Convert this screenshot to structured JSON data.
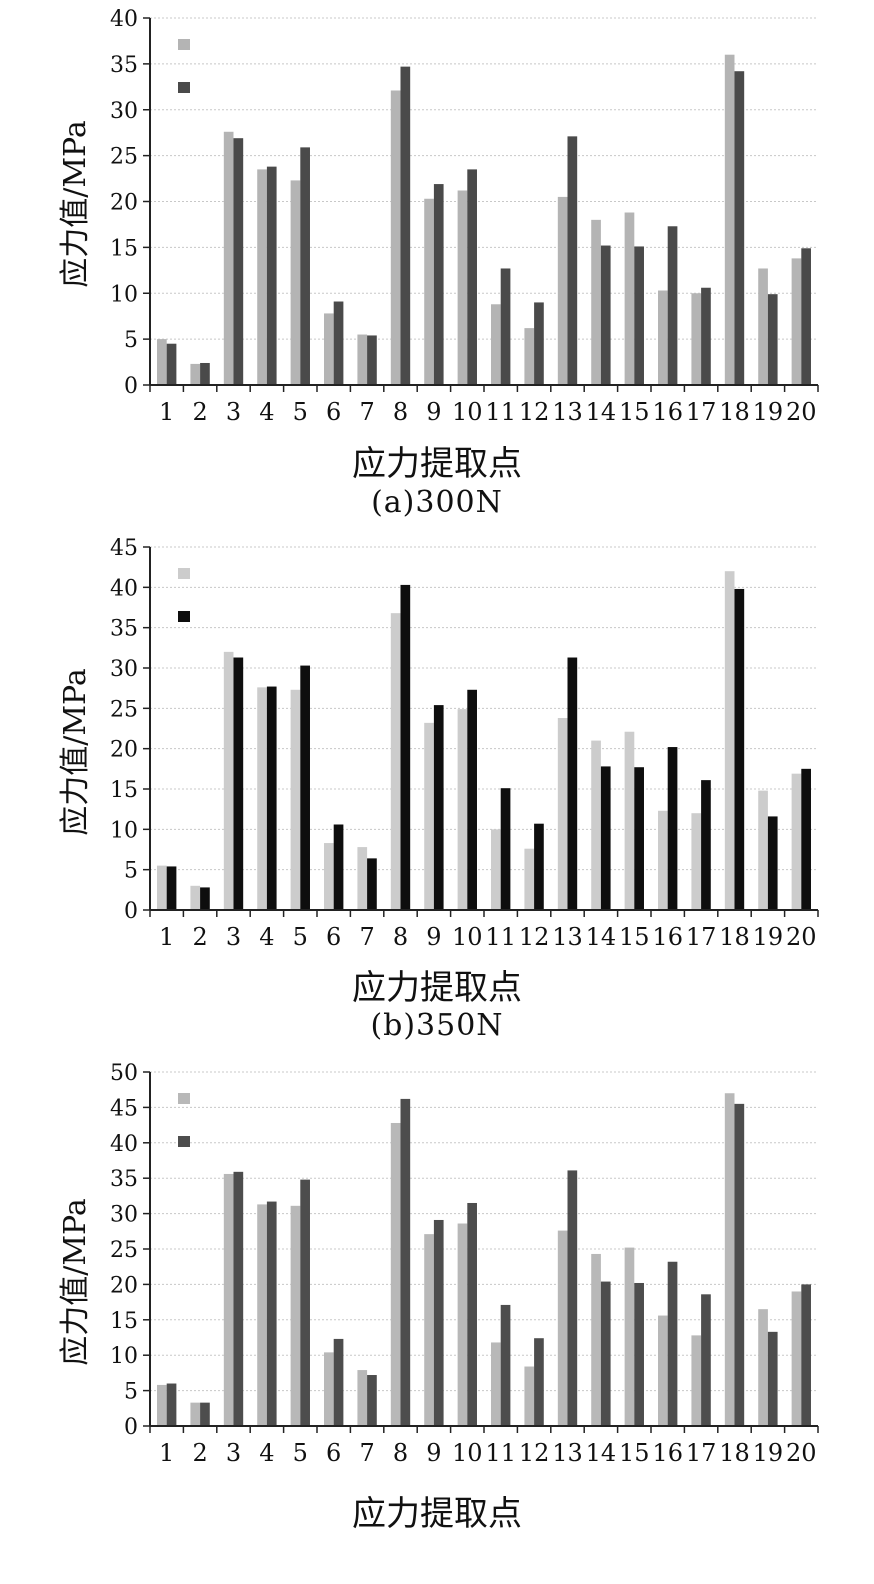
{
  "chart_data": [
    {
      "type": "bar",
      "caption": "(a)300N",
      "xlabel": "应力提取点",
      "ylabel": "应力值/MPa",
      "ylim": [
        0,
        40
      ],
      "yticks": [
        0,
        5,
        10,
        15,
        20,
        25,
        30,
        35,
        40
      ],
      "grid": true,
      "legend": "top-left",
      "categories": [
        "1",
        "2",
        "3",
        "4",
        "5",
        "6",
        "7",
        "8",
        "9",
        "10",
        "11",
        "12",
        "13",
        "14",
        "15",
        "16",
        "17",
        "18",
        "19",
        "20"
      ],
      "tick_labels": [
        "1",
        "2",
        "3",
        "4",
        "5",
        "6",
        "7",
        "8",
        "9",
        "10",
        "11",
        "12",
        "13",
        "14",
        "15",
        "16",
        "17",
        "18",
        "19",
        "20"
      ],
      "colors": [
        "#b4b4b4",
        "#4a4a4a"
      ],
      "series": [
        {
          "values": [
            5.0,
            2.3,
            27.6,
            23.5,
            22.3,
            7.8,
            5.5,
            32.1,
            20.3,
            21.2,
            8.8,
            6.2,
            20.5,
            18.0,
            18.8,
            10.3,
            10.0,
            36.0,
            12.7,
            13.8
          ]
        },
        {
          "values": [
            4.5,
            2.4,
            26.9,
            23.8,
            25.9,
            9.1,
            5.4,
            34.7,
            21.9,
            23.5,
            12.7,
            9.0,
            27.1,
            15.2,
            15.1,
            17.3,
            10.6,
            34.2,
            9.9,
            14.9
          ]
        }
      ]
    },
    {
      "type": "bar",
      "caption": "(b)350N",
      "xlabel": "应力提取点",
      "ylabel": "应力值/MPa",
      "ylim": [
        0,
        45
      ],
      "yticks": [
        0,
        5,
        10,
        15,
        20,
        25,
        30,
        35,
        40,
        45
      ],
      "grid": true,
      "legend": "top-left",
      "categories": [
        "1",
        "2",
        "3",
        "4",
        "5",
        "6",
        "7",
        "8",
        "9",
        "10",
        "11",
        "12",
        "13",
        "14",
        "15",
        "16",
        "17",
        "18",
        "19",
        "20"
      ],
      "tick_labels": [
        "1",
        "2",
        "3",
        "4",
        "5",
        "6",
        "7",
        "8",
        "9",
        "10",
        "11",
        "12",
        "13",
        "14",
        "15",
        "16",
        "17",
        "18",
        "19",
        "20"
      ],
      "colors": [
        "#cccccc",
        "#0e0e0e"
      ],
      "series": [
        {
          "values": [
            5.5,
            3.0,
            32.0,
            27.6,
            27.3,
            8.3,
            7.8,
            36.8,
            23.2,
            24.9,
            10.0,
            7.6,
            23.8,
            21.0,
            22.1,
            12.3,
            12.0,
            42.0,
            14.8,
            16.9
          ]
        },
        {
          "values": [
            5.4,
            2.8,
            31.3,
            27.7,
            30.3,
            10.6,
            6.4,
            40.3,
            25.4,
            27.3,
            15.1,
            10.7,
            31.3,
            17.8,
            17.7,
            20.2,
            16.1,
            39.8,
            11.6,
            17.5
          ]
        }
      ]
    },
    {
      "type": "bar",
      "caption": "",
      "xlabel": "应力提取点",
      "ylabel": "应力值/MPa",
      "ylim": [
        0,
        50
      ],
      "yticks": [
        0,
        5,
        10,
        15,
        20,
        25,
        30,
        35,
        40,
        45,
        50
      ],
      "grid": true,
      "legend": "top-left",
      "categories": [
        "1",
        "2",
        "3",
        "4",
        "5",
        "6",
        "7",
        "8",
        "9",
        "10",
        "11",
        "12",
        "13",
        "14",
        "15",
        "16",
        "17",
        "18",
        "19",
        "20"
      ],
      "tick_labels": [
        "1",
        "2",
        "3",
        "4",
        "5",
        "6",
        "7",
        "8",
        "9",
        "10",
        "11",
        "12",
        "13",
        "14",
        "15",
        "16",
        "17",
        "18",
        "19",
        "20"
      ],
      "colors": [
        "#b8b8b8",
        "#4d4d4d"
      ],
      "series": [
        {
          "values": [
            5.8,
            3.3,
            35.6,
            31.3,
            31.1,
            10.4,
            7.9,
            42.8,
            27.1,
            28.6,
            11.8,
            8.4,
            27.6,
            24.3,
            25.2,
            15.6,
            12.8,
            47.0,
            16.5,
            19.0
          ]
        },
        {
          "values": [
            6.0,
            3.3,
            35.9,
            31.7,
            34.8,
            12.3,
            7.2,
            46.2,
            29.1,
            31.5,
            17.1,
            12.4,
            36.1,
            20.4,
            20.2,
            23.2,
            18.6,
            45.5,
            13.3,
            20.0
          ]
        }
      ]
    }
  ]
}
